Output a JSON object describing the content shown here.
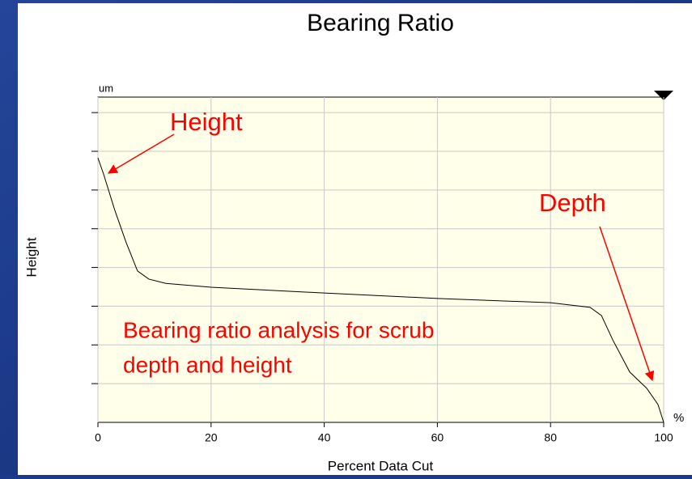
{
  "chart_data": {
    "type": "line",
    "title": "Bearing Ratio",
    "x_label": "Percent Data Cut",
    "y_label": "Height",
    "y_unit": "um",
    "x_unit": "%",
    "annotations": [
      "Height",
      "Depth",
      "Bearing ratio analysis for scrub",
      "depth and height"
    ],
    "x": [
      0,
      1,
      3,
      5,
      7,
      9,
      12,
      20,
      40,
      60,
      80,
      87,
      89,
      91,
      94,
      97,
      99,
      100
    ],
    "series": [
      {
        "name": "Height",
        "color": "#000000",
        "values": [
          6.83,
          6.41,
          5.47,
          4.64,
          3.91,
          3.7,
          3.59,
          3.49,
          3.34,
          3.2,
          3.09,
          2.97,
          2.76,
          2.13,
          1.3,
          0.88,
          0.46,
          0
        ]
      }
    ],
    "xlim": [
      0,
      100
    ],
    "xticks": [
      0,
      20,
      40,
      60,
      80,
      100
    ],
    "ylim": [
      0,
      8.4
    ],
    "yticks": [
      1,
      2,
      3,
      4,
      5,
      6,
      7,
      8
    ],
    "grid": true
  }
}
